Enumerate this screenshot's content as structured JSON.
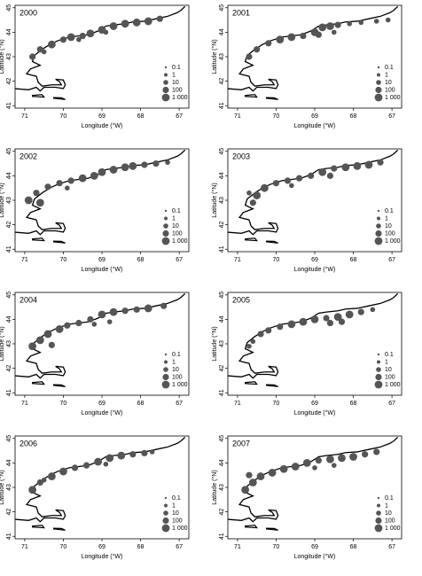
{
  "chart_data": [
    {
      "type": "scatter",
      "title": "2000",
      "xlabel": "Longitude (°W)",
      "ylabel": "Latitude (°N)",
      "xlim": [
        71.25,
        66.75
      ],
      "ylim": [
        40.9,
        45.1
      ],
      "xticks": [
        71,
        70,
        69,
        68,
        67
      ],
      "yticks": [
        41,
        42,
        43,
        44,
        45
      ],
      "color": "#555555",
      "size_scale": "log",
      "size_legend": [
        {
          "value": 0.1,
          "label": "0.1"
        },
        {
          "value": 1,
          "label": "1"
        },
        {
          "value": 10,
          "label": "10"
        },
        {
          "value": 100,
          "label": "100"
        },
        {
          "value": 1000,
          "label": "1 000"
        }
      ],
      "x": [
        70.8,
        70.6,
        70.3,
        70.0,
        69.8,
        69.5,
        69.3,
        69.0,
        68.7,
        68.4,
        68.1,
        67.8,
        67.5,
        69.6,
        68.9,
        70.5
      ],
      "y": [
        43.0,
        43.3,
        43.5,
        43.7,
        43.8,
        43.85,
        43.95,
        44.1,
        44.25,
        44.35,
        44.4,
        44.45,
        44.55,
        43.7,
        44.0,
        43.2
      ],
      "sizes": [
        100,
        100,
        1000,
        100,
        1000,
        100,
        1000,
        1000,
        1000,
        1000,
        1000,
        1000,
        100,
        10,
        10,
        10
      ]
    },
    {
      "type": "scatter",
      "title": "2001",
      "xlabel": "Longitude (°W)",
      "ylabel": "Latitude (°N)",
      "xlim": [
        71.25,
        66.75
      ],
      "ylim": [
        40.9,
        45.1
      ],
      "xticks": [
        71,
        70,
        69,
        68,
        67
      ],
      "yticks": [
        41,
        42,
        43,
        44,
        45
      ],
      "color": "#555555",
      "size_scale": "log",
      "size_legend": [
        {
          "value": 0.1,
          "label": "0.1"
        },
        {
          "value": 1,
          "label": "1"
        },
        {
          "value": 10,
          "label": "10"
        },
        {
          "value": 100,
          "label": "100"
        },
        {
          "value": 1000,
          "label": "1 000"
        }
      ],
      "x": [
        70.7,
        70.5,
        70.2,
        69.9,
        69.6,
        69.3,
        69.0,
        68.8,
        68.6,
        68.4,
        68.1,
        67.8,
        67.4,
        67.1,
        68.9,
        68.5
      ],
      "y": [
        43.0,
        43.3,
        43.55,
        43.7,
        43.8,
        43.85,
        44.0,
        44.2,
        44.25,
        44.3,
        44.35,
        44.4,
        44.45,
        44.5,
        43.9,
        44.0
      ],
      "sizes": [
        100,
        100,
        100,
        1000,
        1000,
        100,
        1000,
        1000,
        1000,
        100,
        10,
        10,
        10,
        10,
        100,
        10
      ]
    },
    {
      "type": "scatter",
      "title": "2002",
      "xlabel": "Longitude (°W)",
      "ylabel": "Latitude (°N)",
      "xlim": [
        71.25,
        66.75
      ],
      "ylim": [
        40.9,
        45.1
      ],
      "xticks": [
        71,
        70,
        69,
        68,
        67
      ],
      "yticks": [
        41,
        42,
        43,
        44,
        45
      ],
      "color": "#555555",
      "size_scale": "log",
      "size_legend": [
        {
          "value": 0.1,
          "label": "0.1"
        },
        {
          "value": 1,
          "label": "1"
        },
        {
          "value": 10,
          "label": "10"
        },
        {
          "value": 100,
          "label": "100"
        },
        {
          "value": 1000,
          "label": "1 000"
        }
      ],
      "x": [
        70.9,
        70.7,
        70.4,
        70.1,
        69.8,
        69.5,
        69.2,
        69.0,
        68.7,
        68.4,
        68.2,
        67.9,
        67.6,
        67.3,
        70.6,
        69.9
      ],
      "y": [
        43.0,
        43.3,
        43.55,
        43.7,
        43.8,
        43.9,
        44.0,
        44.15,
        44.25,
        44.35,
        44.4,
        44.45,
        44.5,
        44.55,
        42.9,
        43.5
      ],
      "sizes": [
        1000,
        100,
        100,
        100,
        100,
        1000,
        1000,
        1000,
        1000,
        1000,
        1000,
        100,
        100,
        10,
        1000,
        10
      ]
    },
    {
      "type": "scatter",
      "title": "2003",
      "xlabel": "Longitude (°W)",
      "ylabel": "Latitude (°N)",
      "xlim": [
        71.25,
        66.75
      ],
      "ylim": [
        40.9,
        45.1
      ],
      "xticks": [
        71,
        70,
        69,
        68,
        67
      ],
      "yticks": [
        41,
        42,
        43,
        44,
        45
      ],
      "color": "#555555",
      "size_scale": "log",
      "size_legend": [
        {
          "value": 0.1,
          "label": "0.1"
        },
        {
          "value": 1,
          "label": "1"
        },
        {
          "value": 10,
          "label": "10"
        },
        {
          "value": 100,
          "label": "100"
        },
        {
          "value": 1000,
          "label": "1 000"
        }
      ],
      "x": [
        70.6,
        70.5,
        70.3,
        70.0,
        69.7,
        69.4,
        69.1,
        68.8,
        68.5,
        68.2,
        67.9,
        67.6,
        67.3,
        69.6,
        68.6,
        70.7
      ],
      "y": [
        42.9,
        43.2,
        43.5,
        43.7,
        43.8,
        43.9,
        44.0,
        44.15,
        44.3,
        44.35,
        44.4,
        44.45,
        44.55,
        43.6,
        44.0,
        43.3
      ],
      "sizes": [
        100,
        1000,
        1000,
        100,
        100,
        100,
        100,
        1000,
        100,
        1000,
        1000,
        1000,
        100,
        10,
        100,
        10
      ]
    },
    {
      "type": "scatter",
      "title": "2004",
      "xlabel": "Longitude (°W)",
      "ylabel": "Latitude (°N)",
      "xlim": [
        71.25,
        66.75
      ],
      "ylim": [
        40.9,
        45.1
      ],
      "xticks": [
        71,
        70,
        69,
        68,
        67
      ],
      "yticks": [
        41,
        42,
        43,
        44,
        45
      ],
      "color": "#555555",
      "size_scale": "log",
      "size_legend": [
        {
          "value": 0.1,
          "label": "0.1"
        },
        {
          "value": 1,
          "label": "1"
        },
        {
          "value": 10,
          "label": "10"
        },
        {
          "value": 100,
          "label": "100"
        },
        {
          "value": 1000,
          "label": "1 000"
        }
      ],
      "x": [
        70.8,
        70.6,
        70.4,
        70.1,
        69.9,
        69.6,
        69.3,
        69.0,
        68.7,
        68.4,
        68.1,
        67.8,
        67.4,
        69.2,
        68.8,
        70.3
      ],
      "y": [
        42.9,
        43.15,
        43.4,
        43.6,
        43.75,
        43.85,
        44.0,
        44.2,
        44.3,
        44.35,
        44.4,
        44.45,
        44.55,
        43.8,
        43.9,
        42.95
      ],
      "sizes": [
        1000,
        1000,
        1000,
        1000,
        100,
        100,
        100,
        1000,
        1000,
        100,
        100,
        1000,
        100,
        10,
        10,
        100
      ]
    },
    {
      "type": "scatter",
      "title": "2005",
      "xlabel": "Longitude (°W)",
      "ylabel": "Latitude (°N)",
      "xlim": [
        71.25,
        66.75
      ],
      "ylim": [
        40.9,
        45.1
      ],
      "xticks": [
        71,
        70,
        69,
        68,
        67
      ],
      "yticks": [
        41,
        42,
        43,
        44,
        45
      ],
      "color": "#555555",
      "size_scale": "log",
      "size_legend": [
        {
          "value": 0.1,
          "label": "0.1"
        },
        {
          "value": 1,
          "label": "1"
        },
        {
          "value": 10,
          "label": "10"
        },
        {
          "value": 100,
          "label": "100"
        },
        {
          "value": 1000,
          "label": "1 000"
        }
      ],
      "x": [
        70.6,
        70.4,
        70.2,
        69.9,
        69.6,
        69.3,
        69.0,
        68.7,
        68.4,
        68.1,
        67.8,
        67.5,
        68.6,
        68.3,
        70.7
      ],
      "y": [
        43.1,
        43.4,
        43.55,
        43.7,
        43.8,
        43.9,
        44.0,
        44.05,
        44.1,
        44.2,
        44.3,
        44.4,
        43.85,
        43.9,
        42.9
      ],
      "sizes": [
        10,
        100,
        100,
        100,
        1000,
        1000,
        1000,
        100,
        1000,
        1000,
        100,
        10,
        100,
        100,
        10
      ]
    },
    {
      "type": "scatter",
      "title": "2006",
      "xlabel": "Longitude (°W)",
      "ylabel": "Latitude (°N)",
      "xlim": [
        71.25,
        66.75
      ],
      "ylim": [
        40.9,
        45.1
      ],
      "xticks": [
        71,
        70,
        69,
        68,
        67
      ],
      "yticks": [
        41,
        42,
        43,
        44,
        45
      ],
      "color": "#555555",
      "size_scale": "log",
      "size_legend": [
        {
          "value": 0.1,
          "label": "0.1"
        },
        {
          "value": 1,
          "label": "1"
        },
        {
          "value": 10,
          "label": "10"
        },
        {
          "value": 100,
          "label": "100"
        },
        {
          "value": 1000,
          "label": "1 000"
        }
      ],
      "x": [
        70.8,
        70.6,
        70.3,
        70.0,
        69.7,
        69.4,
        69.1,
        68.8,
        68.5,
        68.2,
        67.9,
        67.7,
        68.9,
        70.5
      ],
      "y": [
        42.9,
        43.2,
        43.45,
        43.65,
        43.8,
        43.9,
        44.05,
        44.2,
        44.3,
        44.35,
        44.4,
        44.45,
        43.95,
        43.3
      ],
      "sizes": [
        1000,
        100,
        1000,
        1000,
        100,
        100,
        1000,
        1000,
        1000,
        100,
        100,
        10,
        10,
        10
      ]
    },
    {
      "type": "scatter",
      "title": "2007",
      "xlabel": "Longitude (°W)",
      "ylabel": "Latitude (°N)",
      "xlim": [
        71.25,
        66.75
      ],
      "ylim": [
        40.9,
        45.1
      ],
      "xticks": [
        71,
        70,
        69,
        68,
        67
      ],
      "yticks": [
        41,
        42,
        43,
        44,
        45
      ],
      "color": "#555555",
      "size_scale": "log",
      "size_legend": [
        {
          "value": 0.1,
          "label": "0.1"
        },
        {
          "value": 1,
          "label": "1"
        },
        {
          "value": 10,
          "label": "10"
        },
        {
          "value": 100,
          "label": "100"
        },
        {
          "value": 1000,
          "label": "1 000"
        }
      ],
      "x": [
        70.8,
        70.6,
        70.4,
        70.1,
        69.8,
        69.5,
        69.2,
        68.9,
        68.6,
        68.3,
        68.0,
        67.7,
        67.4,
        69.0,
        68.5,
        70.7
      ],
      "y": [
        42.9,
        43.2,
        43.45,
        43.6,
        43.75,
        43.85,
        44.0,
        44.1,
        44.15,
        44.2,
        44.25,
        44.35,
        44.45,
        43.8,
        43.9,
        43.5
      ],
      "sizes": [
        1000,
        1000,
        1000,
        1000,
        1000,
        1000,
        1000,
        100,
        1000,
        1000,
        1000,
        100,
        100,
        10,
        10,
        100
      ]
    }
  ]
}
